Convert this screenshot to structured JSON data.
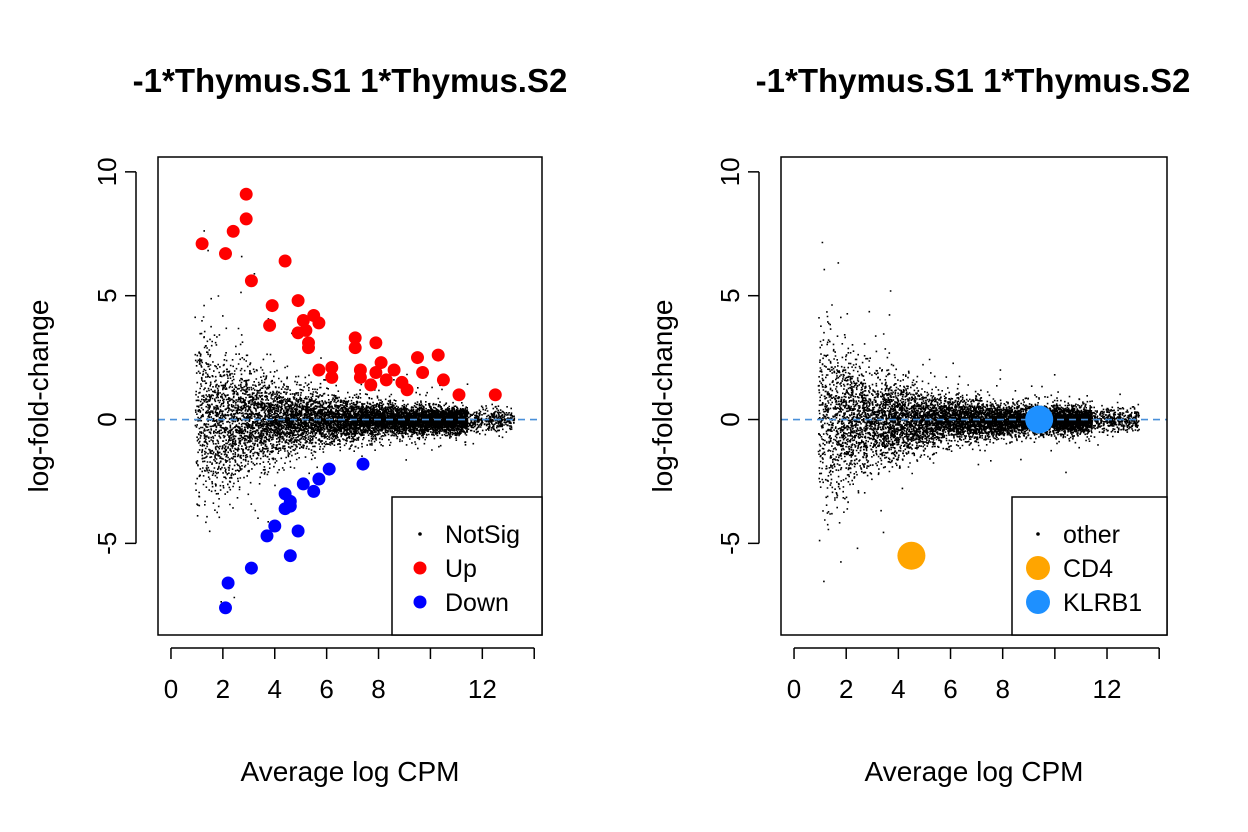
{
  "chart_data": [
    {
      "type": "scatter",
      "title": "-1*Thymus.S1 1*Thymus.S2",
      "xlabel": "Average log CPM",
      "ylabel": "log-fold-change",
      "xlim": [
        -0.5,
        14.3
      ],
      "ylim": [
        -8.7,
        10.6
      ],
      "xticks": [
        0,
        2,
        4,
        6,
        8,
        10,
        12,
        14
      ],
      "xtick_labels": [
        "0",
        "2",
        "4",
        "6",
        "8",
        "",
        "12",
        ""
      ],
      "yticks": [
        -5,
        0,
        5,
        10
      ],
      "ytick_labels": [
        "-5",
        "0",
        "5",
        "10"
      ],
      "hline": {
        "y": 0,
        "color": "#4a90d9",
        "style": "dashed"
      },
      "legend": {
        "position": "bottom-right",
        "entries": [
          {
            "label": "NotSig",
            "color": "#000000",
            "marker": "tiny"
          },
          {
            "label": "Up",
            "color": "#ff0000",
            "marker": "dot"
          },
          {
            "label": "Down",
            "color": "#0000ff",
            "marker": "dot"
          }
        ]
      },
      "series": [
        {
          "name": "Up",
          "color": "#ff0000",
          "points": [
            [
              1.2,
              7.1
            ],
            [
              2.1,
              6.7
            ],
            [
              2.4,
              7.6
            ],
            [
              2.9,
              8.1
            ],
            [
              2.9,
              9.1
            ],
            [
              3.1,
              5.6
            ],
            [
              3.9,
              4.6
            ],
            [
              3.8,
              3.8
            ],
            [
              4.4,
              6.4
            ],
            [
              4.9,
              4.8
            ],
            [
              4.9,
              3.5
            ],
            [
              5.1,
              4.0
            ],
            [
              5.2,
              3.6
            ],
            [
              5.3,
              3.1
            ],
            [
              5.3,
              2.9
            ],
            [
              5.5,
              4.2
            ],
            [
              5.7,
              3.9
            ],
            [
              5.7,
              2.0
            ],
            [
              6.2,
              2.1
            ],
            [
              6.2,
              1.7
            ],
            [
              7.1,
              3.3
            ],
            [
              7.1,
              2.9
            ],
            [
              7.3,
              2.0
            ],
            [
              7.3,
              1.7
            ],
            [
              7.7,
              1.4
            ],
            [
              7.9,
              3.1
            ],
            [
              7.9,
              1.9
            ],
            [
              8.1,
              2.3
            ],
            [
              8.3,
              1.6
            ],
            [
              8.6,
              2.0
            ],
            [
              8.9,
              1.5
            ],
            [
              9.1,
              1.2
            ],
            [
              9.5,
              2.5
            ],
            [
              9.7,
              1.9
            ],
            [
              10.3,
              2.6
            ],
            [
              10.5,
              1.6
            ],
            [
              11.1,
              1.0
            ],
            [
              12.5,
              1.0
            ]
          ]
        },
        {
          "name": "Down",
          "color": "#0000ff",
          "points": [
            [
              4.4,
              -3.0
            ],
            [
              4.6,
              -3.3
            ],
            [
              4.6,
              -3.5
            ],
            [
              4.4,
              -3.6
            ],
            [
              5.1,
              -2.6
            ],
            [
              5.5,
              -2.9
            ],
            [
              5.7,
              -2.4
            ],
            [
              6.1,
              -2.0
            ],
            [
              7.4,
              -1.8
            ],
            [
              4.0,
              -4.3
            ],
            [
              3.7,
              -4.7
            ],
            [
              4.9,
              -4.5
            ],
            [
              4.6,
              -5.5
            ],
            [
              3.1,
              -6.0
            ],
            [
              2.2,
              -6.6
            ],
            [
              2.1,
              -7.6
            ]
          ]
        }
      ]
    },
    {
      "type": "scatter",
      "title": "-1*Thymus.S1 1*Thymus.S2",
      "xlabel": "Average log CPM",
      "ylabel": "log-fold-change",
      "xlim": [
        -0.5,
        14.3
      ],
      "ylim": [
        -8.7,
        10.6
      ],
      "xticks": [
        0,
        2,
        4,
        6,
        8,
        10,
        12,
        14
      ],
      "xtick_labels": [
        "0",
        "2",
        "4",
        "6",
        "8",
        "",
        "12",
        ""
      ],
      "yticks": [
        -5,
        0,
        5,
        10
      ],
      "ytick_labels": [
        "-5",
        "0",
        "5",
        "10"
      ],
      "hline": {
        "y": 0,
        "color": "#4a90d9",
        "style": "dashed"
      },
      "legend": {
        "position": "bottom-right",
        "entries": [
          {
            "label": "other",
            "color": "#000000",
            "marker": "tiny"
          },
          {
            "label": "CD4",
            "color": "#ffa500",
            "marker": "big"
          },
          {
            "label": "KLRB1",
            "color": "#1e90ff",
            "marker": "big"
          }
        ]
      },
      "series": [
        {
          "name": "CD4",
          "color": "#ffa500",
          "points": [
            [
              4.5,
              -5.5
            ]
          ]
        },
        {
          "name": "KLRB1",
          "color": "#1e90ff",
          "points": [
            [
              9.4,
              0.0
            ]
          ]
        }
      ]
    }
  ]
}
